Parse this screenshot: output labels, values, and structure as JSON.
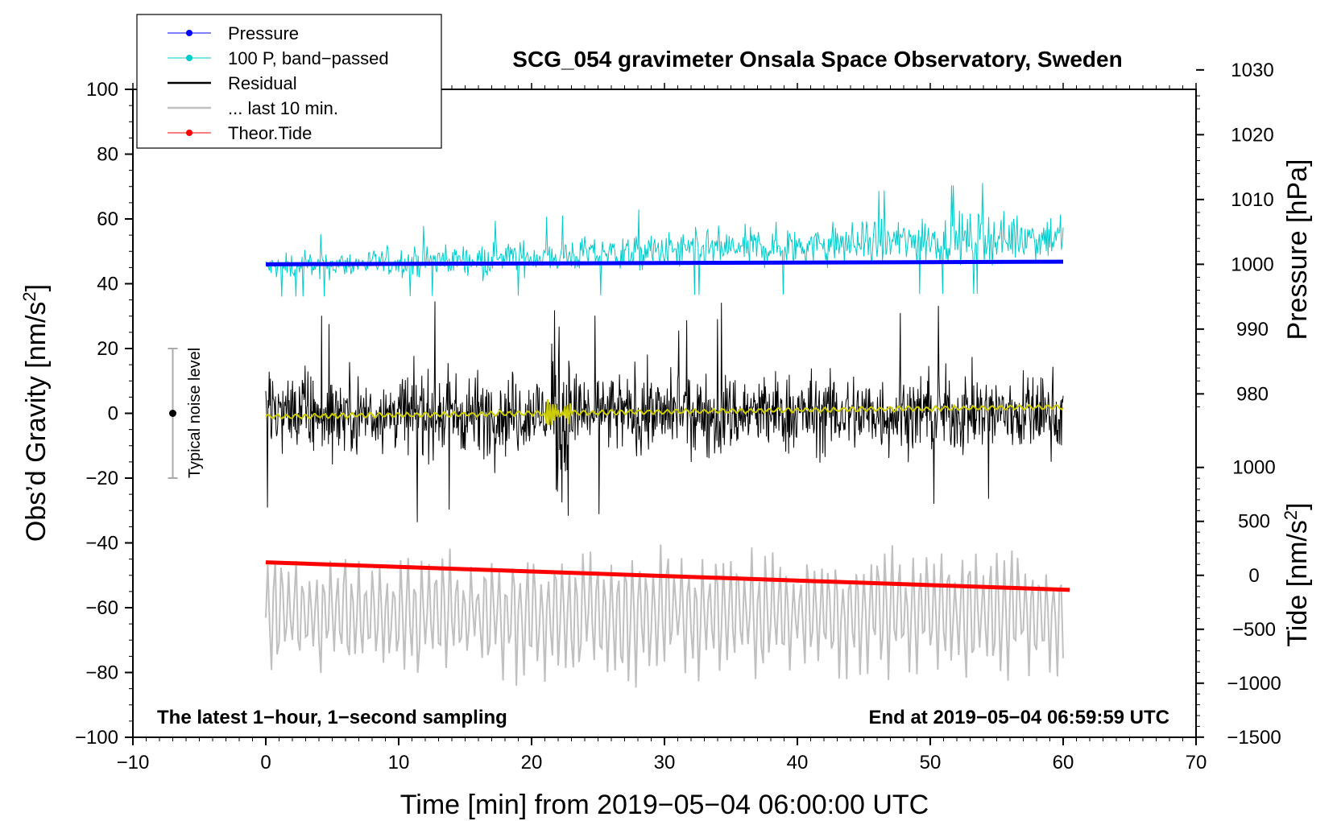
{
  "chart_data": {
    "type": "line",
    "title": "SCG_054 gravimeter Onsala Space Observatory, Sweden",
    "xlabel": "Time [min] from 2019−05−04 06:00:00 UTC",
    "ylabel_left": "Obs’d Gravity [nm/s²]",
    "ylabel_left_base": "Obs’d Gravity [nm/s",
    "ylabel_left_sup": "2",
    "ylabel_left_end": "]",
    "ylabel_right_pressure": "Pressure [hPa]",
    "ylabel_right_tide": "Tide [nm/s²]",
    "ylabel_right_tide_base": "Tide [nm/s",
    "ylabel_right_tide_sup": "2",
    "ylabel_right_tide_end": "]",
    "xlim": [
      -10,
      70
    ],
    "ylim": [
      -100,
      100
    ],
    "x_ticks": [
      -10,
      0,
      10,
      20,
      30,
      40,
      50,
      60,
      70
    ],
    "x_tick_labels": [
      "−10",
      "0",
      "10",
      "20",
      "30",
      "40",
      "50",
      "60",
      "70"
    ],
    "y_ticks": [
      -100,
      -80,
      -60,
      -40,
      -20,
      0,
      20,
      40,
      60,
      80,
      100
    ],
    "y_tick_labels": [
      "−100",
      "−80",
      "−60",
      "−40",
      "−20",
      "0",
      "20",
      "40",
      "60",
      "80",
      "100"
    ],
    "pressure_axis": {
      "ticks": [
        980,
        990,
        1000,
        1010,
        1020,
        1030
      ],
      "tick_labels": [
        "980",
        "990",
        "1000",
        "1010",
        "1020",
        "1030"
      ],
      "gravity_at_1000": 46,
      "gravity_per_hpa": 2.0
    },
    "tide_axis": {
      "ticks": [
        -1500,
        -1000,
        -500,
        0,
        500,
        1000
      ],
      "tick_labels": [
        "−1500",
        "−1000",
        "−500",
        "0",
        "500",
        "1000"
      ],
      "gravity_at_0": -50,
      "gravity_per_unit": 0.0333
    },
    "series": [
      {
        "name": "Pressure",
        "color": "#0000ff",
        "kind": "line",
        "x": [
          0,
          60
        ],
        "values": [
          1000.0,
          1000.4
        ],
        "axis": "pressure"
      },
      {
        "name": "100 P, band−passed",
        "color": "#00cccc",
        "kind": "noise",
        "center_start": 45,
        "center_end": 55,
        "amp_start": 5,
        "amp_end": 10,
        "axis": "gravity"
      },
      {
        "name": "Residual",
        "color": "#000000",
        "kind": "noise",
        "center_start": 0,
        "center_end": 0,
        "amp_start": 14,
        "amp_end": 14,
        "axis": "gravity"
      },
      {
        "name": "... last 10 min.",
        "color": "#c0c0c0",
        "kind": "noise",
        "center_start": -62,
        "center_end": -62,
        "amp_start": 15,
        "amp_end": 15,
        "axis": "gravity"
      },
      {
        "name": "Theor.Tide",
        "color": "#ff0000",
        "kind": "line",
        "x": [
          0,
          60.5
        ],
        "values": [
          -46,
          -54.5
        ],
        "axis": "gravity"
      },
      {
        "name": "Residual smoothed",
        "color": "#cccc00",
        "kind": "smooth",
        "x": [
          0,
          60
        ],
        "values": [
          -1,
          2
        ],
        "axis": "gravity"
      }
    ],
    "noise_bar": {
      "x": -7,
      "center": 0,
      "low": -20,
      "high": 20,
      "label": "Typical noise level"
    },
    "legend": [
      {
        "label": "Pressure",
        "color": "#0000ff",
        "marker": true,
        "width": 1
      },
      {
        "label": "100 P, band−passed",
        "color": "#00cccc",
        "marker": true,
        "width": 1
      },
      {
        "label": "Residual",
        "color": "#000000",
        "marker": false,
        "width": 2.5
      },
      {
        "label": "... last 10 min.",
        "color": "#c0c0c0",
        "marker": false,
        "width": 2.5
      },
      {
        "label": "Theor.Tide",
        "color": "#ff0000",
        "marker": true,
        "width": 1
      }
    ],
    "annotations": {
      "bottom_left": "The latest 1−hour, 1−second sampling",
      "bottom_right": "End at 2019−05−04 06:59:59 UTC"
    }
  }
}
